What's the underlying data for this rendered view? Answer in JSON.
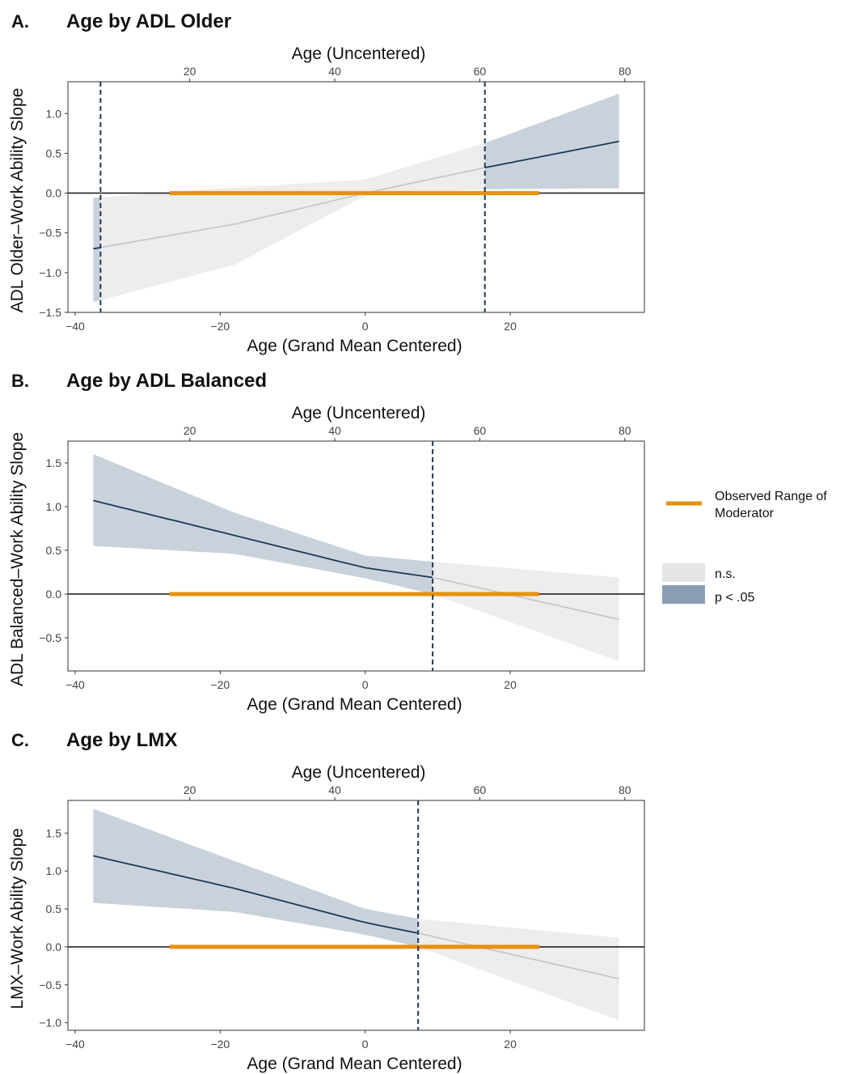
{
  "chart_data": [
    {
      "type": "line",
      "letter": "A.",
      "title": "Age by ADL Older",
      "xlabel": "Age (Grand Mean Centered)",
      "x2label": "Age (Uncentered)",
      "ylabel": "ADL Older–Work Ability Slope",
      "xlim": [
        -41,
        38.5
      ],
      "ylim": [
        -1.5,
        1.4
      ],
      "x_ticks": [
        -40,
        -20,
        0,
        20
      ],
      "x2_ticks": [
        20,
        40,
        60,
        80
      ],
      "x2_offset": 44.2,
      "y_ticks": [
        -1.5,
        -1.0,
        -0.5,
        0.0,
        0.5,
        1.0
      ],
      "series": [
        {
          "x": [
            -37.5,
            -18,
            0,
            16.5,
            35
          ],
          "estimate": [
            -0.7,
            -0.39,
            0.0,
            0.32,
            0.65
          ],
          "lower": [
            -1.37,
            -0.9,
            -0.03,
            0.05,
            0.06
          ],
          "upper": [
            -0.06,
            0.07,
            0.17,
            0.63,
            1.25
          ]
        }
      ],
      "jn_boundaries": [
        -36.5,
        16.5
      ],
      "observed_range": [
        -27,
        24
      ]
    },
    {
      "type": "line",
      "letter": "B.",
      "title": "Age by ADL Balanced",
      "xlabel": "Age (Grand Mean Centered)",
      "x2label": "Age (Uncentered)",
      "ylabel": "ADL Balanced–Work Ability Slope",
      "xlim": [
        -41,
        38.5
      ],
      "ylim": [
        -0.88,
        1.75
      ],
      "x_ticks": [
        -40,
        -20,
        0,
        20
      ],
      "x2_ticks": [
        20,
        40,
        60,
        80
      ],
      "x2_offset": 44.2,
      "y_ticks": [
        -0.5,
        0.0,
        0.5,
        1.0,
        1.5
      ],
      "series": [
        {
          "x": [
            -37.5,
            -18,
            0,
            9.3,
            35
          ],
          "estimate": [
            1.07,
            0.67,
            0.3,
            0.19,
            -0.29
          ],
          "lower": [
            0.55,
            0.46,
            0.18,
            0.0,
            -0.77
          ],
          "upper": [
            1.6,
            0.93,
            0.44,
            0.37,
            0.19
          ]
        }
      ],
      "jn_boundaries": [
        9.3
      ],
      "observed_range": [
        -27,
        24
      ]
    },
    {
      "type": "line",
      "letter": "C.",
      "title": "Age by LMX",
      "xlabel": "Age (Grand Mean Centered)",
      "x2label": "Age (Uncentered)",
      "ylabel": "LMX–Work Ability Slope",
      "xlim": [
        -41,
        38.5
      ],
      "ylim": [
        -1.1,
        1.93
      ],
      "x_ticks": [
        -40,
        -20,
        0,
        20
      ],
      "x2_ticks": [
        20,
        40,
        60,
        80
      ],
      "x2_offset": 44.2,
      "y_ticks": [
        -1.0,
        -0.5,
        0.0,
        0.5,
        1.0,
        1.5
      ],
      "series": [
        {
          "x": [
            -37.5,
            -18,
            0,
            7.3,
            35
          ],
          "estimate": [
            1.2,
            0.77,
            0.32,
            0.18,
            -0.42
          ],
          "lower": [
            0.58,
            0.46,
            0.16,
            0.0,
            -0.97
          ],
          "upper": [
            1.82,
            1.13,
            0.5,
            0.37,
            0.12
          ]
        }
      ],
      "jn_boundaries": [
        7.3
      ],
      "observed_range": [
        -27,
        24
      ]
    }
  ],
  "legend": {
    "observed_label_line1": "Observed Range of",
    "observed_label_line2": "Moderator",
    "ns_label": "n.s.",
    "sig_label": "p < .05"
  },
  "colors": {
    "observed_range": "#E8900C",
    "ns_fill": "#EDEDED",
    "ns_line": "#C8C8C8",
    "sig_fill": "#C9D2DB",
    "sig_line": "#1B3A57",
    "jn_line": "#1B3A57",
    "legend_ns": "#E6E6E6",
    "legend_sig": "#8A9FB3"
  }
}
